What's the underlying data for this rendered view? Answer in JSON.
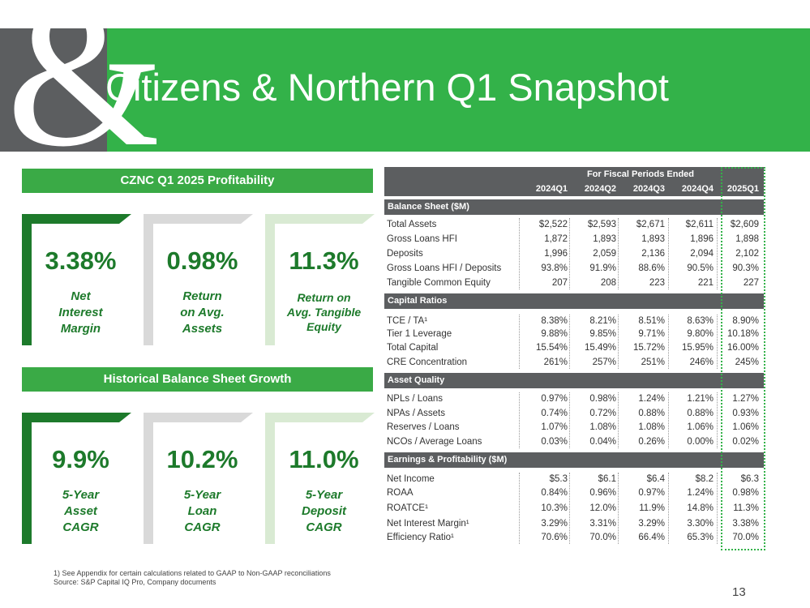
{
  "header": {
    "title": "Citizens & Northern Q1 Snapshot",
    "logo_glyph": "&"
  },
  "profitability": {
    "title": "CZNC Q1 2025 Profitability",
    "tiles": [
      {
        "value": "3.38%",
        "label_lines": [
          "Net",
          "Interest",
          "Margin"
        ]
      },
      {
        "value": "0.98%",
        "label_lines": [
          "Return",
          "on Avg.",
          "Assets"
        ]
      },
      {
        "value": "11.3%",
        "label_lines": [
          "Return on",
          "Avg. Tangible",
          "Equity"
        ]
      }
    ]
  },
  "growth": {
    "title": "Historical Balance Sheet Growth",
    "tiles": [
      {
        "value": "9.9%",
        "label_lines": [
          "5-Year",
          "Asset",
          "CAGR"
        ]
      },
      {
        "value": "10.2%",
        "label_lines": [
          "5-Year",
          "Loan",
          "CAGR"
        ]
      },
      {
        "value": "11.0%",
        "label_lines": [
          "5-Year",
          "Deposit",
          "CAGR"
        ]
      }
    ]
  },
  "table": {
    "period_header": "For Fiscal Periods Ended",
    "columns": [
      "2024Q1",
      "2024Q2",
      "2024Q3",
      "2024Q4",
      "2025Q1"
    ],
    "groups": [
      {
        "title": "Balance Sheet ($M)",
        "rows": [
          {
            "label": "Total Assets",
            "values": [
              "$2,522",
              "$2,593",
              "$2,671",
              "$2,611",
              "$2,609"
            ]
          },
          {
            "label": "Gross Loans HFI",
            "values": [
              "1,872",
              "1,893",
              "1,893",
              "1,896",
              "1,898"
            ]
          },
          {
            "label": "Deposits",
            "values": [
              "1,996",
              "2,059",
              "2,136",
              "2,094",
              "2,102"
            ]
          },
          {
            "label": "Gross Loans HFI / Deposits",
            "values": [
              "93.8%",
              "91.9%",
              "88.6%",
              "90.5%",
              "90.3%"
            ]
          },
          {
            "label": "Tangible Common Equity",
            "values": [
              "207",
              "208",
              "223",
              "221",
              "227"
            ]
          }
        ]
      },
      {
        "title": "Capital Ratios",
        "rows": [
          {
            "label": "TCE / TA¹",
            "values": [
              "8.38%",
              "8.21%",
              "8.51%",
              "8.63%",
              "8.90%"
            ]
          },
          {
            "label": "Tier 1 Leverage",
            "values": [
              "9.88%",
              "9.85%",
              "9.71%",
              "9.80%",
              "10.18%"
            ]
          },
          {
            "label": "Total Capital",
            "values": [
              "15.54%",
              "15.49%",
              "15.72%",
              "15.95%",
              "16.00%"
            ]
          },
          {
            "label": "CRE Concentration",
            "values": [
              "261%",
              "257%",
              "251%",
              "246%",
              "245%"
            ]
          }
        ]
      },
      {
        "title": "Asset Quality",
        "rows": [
          {
            "label": "NPLs / Loans",
            "values": [
              "0.97%",
              "0.98%",
              "1.24%",
              "1.21%",
              "1.27%"
            ]
          },
          {
            "label": "NPAs / Assets",
            "values": [
              "0.74%",
              "0.72%",
              "0.88%",
              "0.88%",
              "0.93%"
            ]
          },
          {
            "label": "Reserves / Loans",
            "values": [
              "1.07%",
              "1.08%",
              "1.08%",
              "1.06%",
              "1.06%"
            ]
          },
          {
            "label": "NCOs / Average Loans",
            "values": [
              "0.03%",
              "0.04%",
              "0.26%",
              "0.00%",
              "0.02%"
            ]
          }
        ]
      },
      {
        "title": "Earnings & Profitability ($M)",
        "rows": [
          {
            "label": "Net Income",
            "values": [
              "$5.3",
              "$6.1",
              "$6.4",
              "$8.2",
              "$6.3"
            ]
          },
          {
            "label": "ROAA",
            "values": [
              "0.84%",
              "0.96%",
              "0.97%",
              "1.24%",
              "0.98%"
            ]
          },
          {
            "label": "ROATCE¹",
            "values": [
              "10.3%",
              "12.0%",
              "11.9%",
              "14.8%",
              "11.3%"
            ]
          },
          {
            "label": "Net Interest Margin¹",
            "values": [
              "3.29%",
              "3.31%",
              "3.29%",
              "3.30%",
              "3.38%"
            ]
          },
          {
            "label": "Efficiency Ratio¹",
            "values": [
              "70.6%",
              "70.0%",
              "66.4%",
              "65.3%",
              "70.0%"
            ]
          }
        ]
      }
    ]
  },
  "footnotes": {
    "note1": "1)    See Appendix for certain calculations related to GAAP to Non-GAAP reconciliations",
    "source": "Source: S&P Capital IQ Pro, Company documents"
  },
  "page_number": "13",
  "colors": {
    "brand_green": "#33b249",
    "dark_green": "#1d7a2b",
    "grey": "#5c5e60",
    "light_grey": "#d9d9d9",
    "light_green": "#d9ead3"
  }
}
